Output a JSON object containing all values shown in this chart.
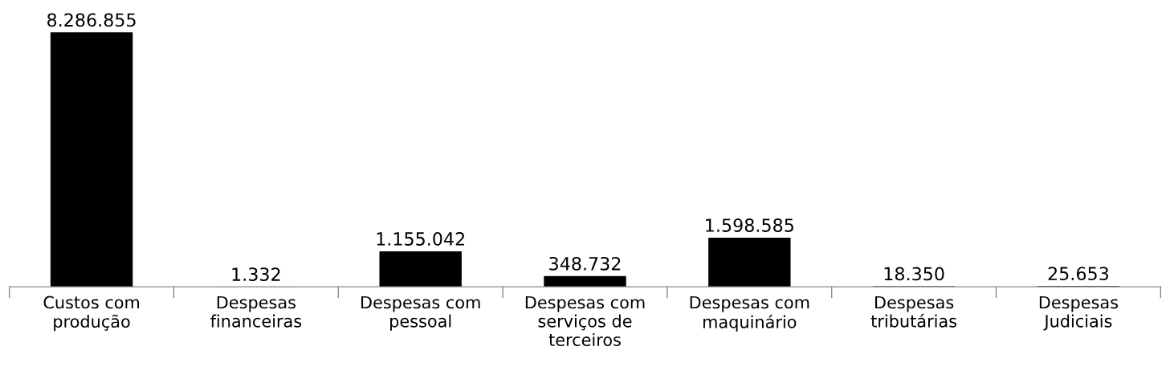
{
  "chart_data": {
    "type": "bar",
    "categories": [
      "Custos com\nprodução",
      "Despesas\nfinanceiras",
      "Despesas com\npessoal",
      "Despesas com\nserviços de\nterceiros",
      "Despesas com\nmaquinário",
      "Despesas\ntributárias",
      "Despesas\nJudiciais"
    ],
    "values": [
      8286855,
      1332,
      1155042,
      348732,
      1598585,
      18350,
      25653
    ],
    "value_labels": [
      "8.286.855",
      "1.332",
      "1.155.042",
      "348.732",
      "1.598.585",
      "18.350",
      "25.653"
    ],
    "color": "#000000",
    "grid": false,
    "legend": false
  }
}
